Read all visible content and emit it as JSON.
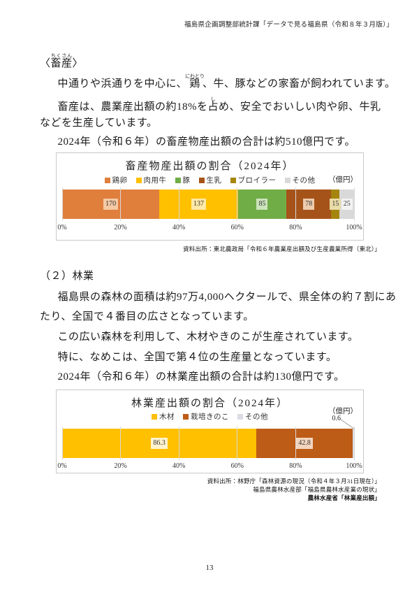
{
  "header": "福島県企画調整部統計課「データで見る福島県（令和８年３月版）」",
  "livestock": {
    "heading_segments": [
      {
        "t": "〈"
      },
      {
        "t": "畜産",
        "r": "ちくさん"
      },
      {
        "t": "〉"
      }
    ],
    "para1_segments": [
      {
        "t": "中通りや浜通りを中心に、"
      },
      {
        "t": "鶏",
        "r": "にわとり"
      },
      {
        "t": "、牛、豚などの家畜が飼われています。"
      }
    ],
    "para2_segments": [
      {
        "t": "畜産は、農業産出額の約18%を"
      },
      {
        "t": "占",
        "r": "し"
      },
      {
        "t": "め、安全でおいしい肉や卵、牛乳"
      }
    ],
    "para2_cont": "などを生産しています。",
    "para3": "2024年（令和６年）の畜産物産出額の合計は約510億円です。"
  },
  "forestry": {
    "heading": "（２）林業",
    "para1a": "福島県の森林の面積は約97万4,000ヘクタールで、県全体の約７割にあ",
    "para1b": "たり、全国で４番目の広さとなっています。",
    "para2": "この広い森林を利用して、木材やきのこが生産されています。",
    "para3": "特に、なめこは、全国で第４位の生産量となっています。",
    "para4": "2024年（令和６年）の林業産出額の合計は約130億円です。"
  },
  "chart_data": [
    {
      "type": "bar",
      "subtype": "horizontal-stacked-100pct",
      "title": "畜産物産出額の割合（2024年）",
      "unit_label": "（億円）",
      "total": 510,
      "series": [
        {
          "name": "鶏卵",
          "value": 170,
          "color": "#e07e3c",
          "label_bg": "#f4c9a4"
        },
        {
          "name": "肉用牛",
          "value": 137,
          "color": "#ffc000",
          "label_bg": "#ffe9a6"
        },
        {
          "name": "豚",
          "value": 85,
          "color": "#70ad47",
          "label_bg": "#cce4bc"
        },
        {
          "name": "生乳",
          "value": 78,
          "color": "#a6531a",
          "label_bg": "#edcdaf"
        },
        {
          "name": "ブロイラー",
          "value": 15,
          "color": "#a5850e",
          "label_bg": "#e9dca8"
        },
        {
          "name": "その他",
          "value": 25,
          "color": "#d9d9d9",
          "label_bg": "#f2f2f2"
        }
      ],
      "x_ticks": [
        "0%",
        "20%",
        "40%",
        "60%",
        "80%",
        "100%"
      ],
      "xlim": [
        0,
        100
      ],
      "grid": true,
      "legend_position": "top",
      "source_lines": [
        "資料出所：東北農政局「令和６年農業産出額及び生産農業所得（東北）」"
      ]
    },
    {
      "type": "bar",
      "subtype": "horizontal-stacked-100pct",
      "title": "林業産出額の割合（2024年）",
      "unit_label": "（億円）",
      "total": 129.7,
      "series": [
        {
          "name": "木材",
          "value": 86.3,
          "label": "86.3",
          "color": "#ffc000",
          "label_bg": "#fff3cf"
        },
        {
          "name": "栽培きのこ",
          "value": 42.8,
          "label": "42.8",
          "color": "#bd5c17",
          "label_bg": "#f3d5be"
        },
        {
          "name": "その他",
          "value": 0.6,
          "color": "#d9dde3",
          "show_label": false,
          "callout": "0.6"
        }
      ],
      "callout_label": "0.6",
      "x_ticks": [
        "0%",
        "20%",
        "40%",
        "60%",
        "80%",
        "100%"
      ],
      "xlim": [
        0,
        100
      ],
      "grid": true,
      "legend_position": "top",
      "source_lines": [
        "資料出所：林野庁「森林資源の現況（令和４年３月31日現在）」",
        "福島県農林水産部「福島県農林水産業の現状」",
        "農林水産省「林業産出額」"
      ]
    }
  ],
  "page_number": "13"
}
